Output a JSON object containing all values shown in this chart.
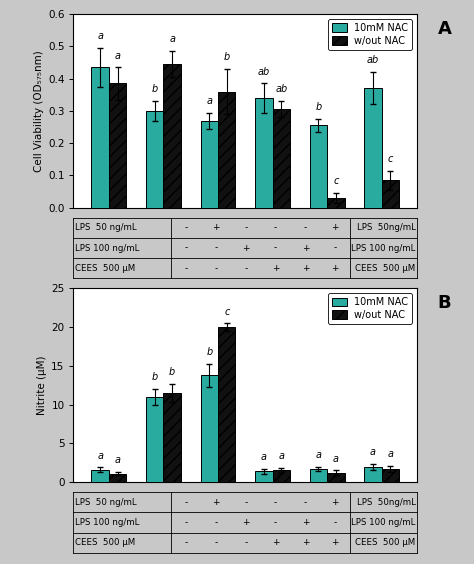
{
  "panel_A": {
    "title": "A",
    "ylabel": "Cell Viability (OD₅₇₅nm)",
    "ylim": [
      0.0,
      0.6
    ],
    "yticks": [
      0.0,
      0.1,
      0.2,
      0.3,
      0.4,
      0.5,
      0.6
    ],
    "nac_values": [
      0.435,
      0.3,
      0.27,
      0.34,
      0.255,
      0.37
    ],
    "nonac_values": [
      0.385,
      0.445,
      0.36,
      0.305,
      0.03,
      0.085
    ],
    "nac_errors": [
      0.06,
      0.03,
      0.025,
      0.045,
      0.02,
      0.05
    ],
    "nonac_errors": [
      0.05,
      0.04,
      0.07,
      0.025,
      0.015,
      0.03
    ],
    "nac_labels": [
      "a",
      "b",
      "a",
      "ab",
      "b",
      "ab"
    ],
    "nonac_labels": [
      "a",
      "a",
      "b",
      "ab",
      "c",
      "c"
    ],
    "table_rows": [
      [
        "LPS  50 ng/mL",
        "-",
        "+",
        "-",
        "-",
        "-",
        "+"
      ],
      [
        "LPS 100 ng/mL",
        "-",
        "-",
        "+",
        "-",
        "+",
        "-"
      ],
      [
        "CEES  500 μM",
        "-",
        "-",
        "-",
        "+",
        "+",
        "+"
      ]
    ],
    "table_right": [
      "LPS  50ng/mL",
      "LPS 100 ng/mL",
      "CEES  500 μM"
    ]
  },
  "panel_B": {
    "title": "B",
    "ylabel": "Nitrite (μM)",
    "ylim": [
      0,
      25
    ],
    "yticks": [
      0,
      5,
      10,
      15,
      20,
      25
    ],
    "nac_values": [
      1.6,
      11.0,
      13.8,
      1.4,
      1.7,
      1.9
    ],
    "nonac_values": [
      1.1,
      11.5,
      20.0,
      1.5,
      1.2,
      1.7
    ],
    "nac_errors": [
      0.3,
      1.0,
      1.5,
      0.3,
      0.3,
      0.4
    ],
    "nonac_errors": [
      0.2,
      1.2,
      0.5,
      0.3,
      0.3,
      0.4
    ],
    "nac_labels": [
      "a",
      "b",
      "b",
      "a",
      "a",
      "a"
    ],
    "nonac_labels": [
      "a",
      "b",
      "c",
      "a",
      "a",
      "a"
    ],
    "table_rows": [
      [
        "LPS  50 ng/mL",
        "-",
        "+",
        "-",
        "-",
        "-",
        "+"
      ],
      [
        "LPS 100 ng/mL",
        "-",
        "-",
        "+",
        "-",
        "+",
        "-"
      ],
      [
        "CEES  500 μM",
        "-",
        "-",
        "-",
        "+",
        "+",
        "+"
      ]
    ],
    "table_right": [
      "LPS  50ng/mL",
      "LPS 100 ng/mL",
      "CEES  500 μM"
    ]
  },
  "teal_color": "#2aaba0",
  "black_color": "#111111",
  "bar_width": 0.32,
  "legend_labels": [
    "10mM NAC",
    "w/out NAC"
  ],
  "bg_color": "#c8c8c8"
}
